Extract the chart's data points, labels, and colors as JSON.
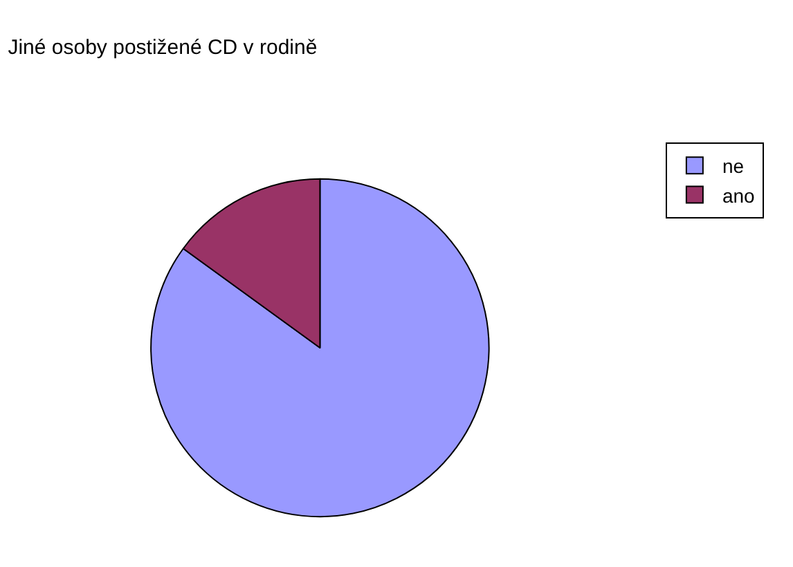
{
  "chart_data": {
    "type": "pie",
    "title": "Jiné osoby postižené CD v rodině",
    "categories": [
      "ne",
      "ano"
    ],
    "values": [
      85,
      15
    ],
    "colors": [
      "#9999ff",
      "#993366"
    ],
    "legend": "top right"
  }
}
